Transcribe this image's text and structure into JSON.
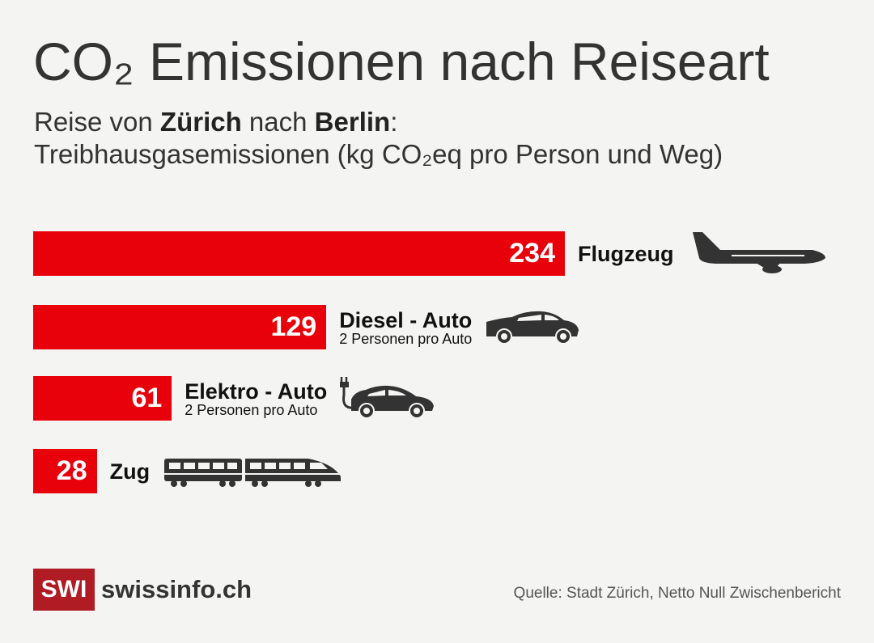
{
  "title": "CO₂ Emissionen nach Reiseart",
  "subtitle": {
    "prefix": "Reise von ",
    "from": "Zürich",
    "mid": " nach ",
    "to": "Berlin",
    "suffix": ":",
    "line2": "Treibhausgasemissionen (kg CO₂eq pro Person und Weg)"
  },
  "chart_data": {
    "type": "bar",
    "orientation": "horizontal",
    "categories": [
      "Flugzeug",
      "Diesel - Auto",
      "Elektro - Auto",
      "Zug"
    ],
    "notes": [
      "",
      "2 Personen pro Auto",
      "2 Personen pro Auto",
      ""
    ],
    "values": [
      234,
      129,
      61,
      28
    ],
    "icons": [
      "airplane-icon",
      "car-icon",
      "electric-car-icon",
      "train-icon"
    ],
    "bar_color": "#e8000b",
    "unit": "kg CO₂eq pro Person und Weg",
    "grid": false
  },
  "footer": {
    "logo": "SWI",
    "site": "swissinfo.ch",
    "source": "Quelle: Stadt Zürich, Netto Null Zwischenbericht",
    "logo_color": "#b01c24"
  }
}
